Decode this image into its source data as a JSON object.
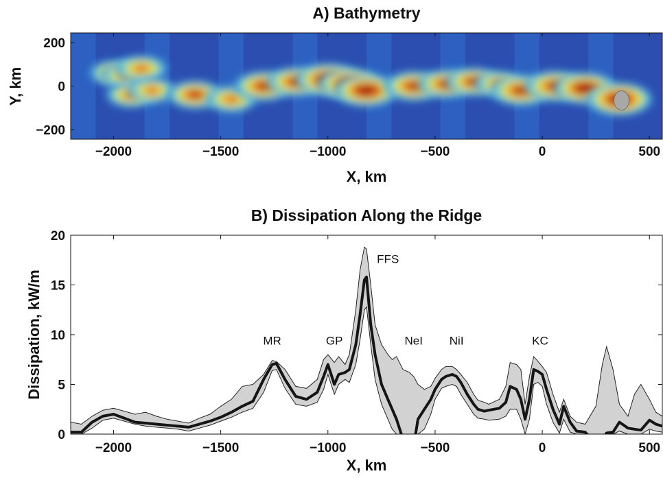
{
  "chart_data": [
    {
      "type": "heatmap",
      "title": "A) Bathymetry",
      "xlabel": "X, km",
      "ylabel": "Y, km",
      "xlim": [
        -2200,
        560
      ],
      "ylim": [
        -245,
        245
      ],
      "xticks": [
        -2000,
        -1500,
        -1000,
        -500,
        0,
        500
      ],
      "yticks": [
        200,
        0,
        -200
      ],
      "colormap": [
        "#2b4fb0",
        "#2f6fd0",
        "#3a9ad8",
        "#66c8e0",
        "#a8e070",
        "#f0e03a",
        "#f09a30",
        "#d04818",
        "#a81e10",
        "#a8a8a8"
      ],
      "shallow_features": [
        {
          "x": -2000,
          "y": 60,
          "intensity": 0.5
        },
        {
          "x": -1940,
          "y": 50,
          "intensity": 0.6
        },
        {
          "x": -1870,
          "y": 80,
          "intensity": 0.6
        },
        {
          "x": -1920,
          "y": -40,
          "intensity": 0.55
        },
        {
          "x": -1820,
          "y": -20,
          "intensity": 0.5
        },
        {
          "x": -1620,
          "y": -40,
          "intensity": 0.7
        },
        {
          "x": -1450,
          "y": -60,
          "intensity": 0.6
        },
        {
          "x": -1300,
          "y": 0,
          "intensity": 0.8
        },
        {
          "x": -1150,
          "y": 20,
          "intensity": 0.75
        },
        {
          "x": -1000,
          "y": 30,
          "intensity": 0.95
        },
        {
          "x": -900,
          "y": 10,
          "intensity": 0.9
        },
        {
          "x": -820,
          "y": -20,
          "intensity": 0.95
        },
        {
          "x": -600,
          "y": 0,
          "intensity": 0.8
        },
        {
          "x": -450,
          "y": 10,
          "intensity": 0.7
        },
        {
          "x": -320,
          "y": 20,
          "intensity": 0.7
        },
        {
          "x": -200,
          "y": 10,
          "intensity": 0.55
        },
        {
          "x": -100,
          "y": -20,
          "intensity": 0.85
        },
        {
          "x": 60,
          "y": 0,
          "intensity": 0.85
        },
        {
          "x": 200,
          "y": -10,
          "intensity": 0.9
        },
        {
          "x": 360,
          "y": -60,
          "intensity": 1.0
        }
      ]
    },
    {
      "type": "area",
      "title": "B) Dissipation Along the Ridge",
      "xlabel": "X, km",
      "ylabel": "Dissipation, kW/m",
      "xlim": [
        -2200,
        560
      ],
      "ylim": [
        0,
        20
      ],
      "xticks": [
        -2000,
        -1500,
        -1000,
        -500,
        0,
        500
      ],
      "yticks": [
        0,
        5,
        10,
        15,
        20
      ],
      "x": [
        -2200,
        -2150,
        -2100,
        -2050,
        -2000,
        -1950,
        -1900,
        -1850,
        -1800,
        -1750,
        -1700,
        -1650,
        -1600,
        -1550,
        -1500,
        -1450,
        -1400,
        -1350,
        -1300,
        -1260,
        -1240,
        -1200,
        -1150,
        -1100,
        -1050,
        -1020,
        -1000,
        -970,
        -950,
        -920,
        -900,
        -870,
        -850,
        -830,
        -820,
        -800,
        -780,
        -750,
        -720,
        -700,
        -680,
        -650,
        -620,
        -600,
        -580,
        -550,
        -520,
        -500,
        -470,
        -450,
        -420,
        -400,
        -380,
        -350,
        -320,
        -300,
        -270,
        -250,
        -200,
        -170,
        -150,
        -120,
        -100,
        -80,
        -60,
        -40,
        -20,
        0,
        20,
        50,
        80,
        100,
        130,
        160,
        200,
        250,
        280,
        300,
        330,
        360,
        400,
        430,
        460,
        500,
        530,
        560
      ],
      "series": [
        {
          "values": [
            0.2,
            0.2,
            1.2,
            1.8,
            2.0,
            1.6,
            1.2,
            1.1,
            1.0,
            0.9,
            0.8,
            0.7,
            1.0,
            1.3,
            1.7,
            2.2,
            2.8,
            3.3,
            5.5,
            7.0,
            7.1,
            5.5,
            3.8,
            3.5,
            4.2,
            5.8,
            7.0,
            5.0,
            6.0,
            6.2,
            6.5,
            9.0,
            12.0,
            15.5,
            15.8,
            11.0,
            8.0,
            5.0,
            3.5,
            2.5,
            1.5,
            -0.5,
            -1.0,
            -1.2,
            1.5,
            2.5,
            3.5,
            4.5,
            5.5,
            5.8,
            6.0,
            5.8,
            5.2,
            4.0,
            3.0,
            2.5,
            2.3,
            2.4,
            2.6,
            3.2,
            4.8,
            4.5,
            3.5,
            1.5,
            3.5,
            6.5,
            6.3,
            6.0,
            4.5,
            2.5,
            1.0,
            2.8,
            1.2,
            0.3,
            0.2,
            -1.0,
            -0.5,
            0.1,
            0.2,
            1.2,
            0.6,
            0.5,
            0.4,
            1.4,
            1.0,
            0.8
          ]
        },
        {
          "values": [
            1.2,
            1.0,
            1.8,
            2.4,
            2.6,
            2.3,
            2.0,
            2.2,
            1.8,
            1.5,
            1.3,
            1.1,
            1.6,
            2.0,
            2.8,
            3.5,
            4.8,
            5.0,
            6.0,
            7.4,
            7.3,
            6.5,
            4.8,
            4.6,
            5.5,
            7.5,
            8.0,
            7.2,
            7.8,
            7.0,
            8.0,
            12.5,
            16.5,
            18.8,
            18.6,
            15.0,
            11.0,
            9.0,
            8.0,
            7.5,
            7.8,
            6.5,
            6.2,
            5.8,
            5.0,
            4.5,
            4.8,
            5.6,
            6.5,
            6.8,
            6.8,
            6.5,
            6.0,
            5.2,
            4.0,
            3.4,
            3.2,
            3.0,
            3.5,
            4.8,
            7.2,
            7.0,
            6.5,
            3.0,
            5.8,
            7.8,
            7.3,
            6.8,
            6.2,
            4.0,
            2.2,
            3.5,
            1.8,
            1.2,
            1.0,
            2.8,
            7.0,
            8.8,
            6.5,
            3.0,
            1.8,
            4.0,
            5.0,
            3.5,
            2.2,
            1.8
          ]
        },
        {
          "values": [
            0.0,
            0.0,
            0.6,
            1.4,
            1.6,
            1.3,
            1.0,
            0.8,
            0.7,
            0.6,
            0.5,
            0.3,
            0.6,
            0.9,
            1.3,
            1.7,
            2.2,
            2.6,
            4.2,
            6.4,
            6.5,
            4.6,
            3.0,
            2.8,
            3.2,
            4.5,
            6.0,
            4.0,
            5.0,
            5.5,
            5.2,
            7.0,
            9.5,
            12.5,
            12.8,
            9.0,
            5.5,
            3.0,
            1.5,
            0.5,
            0.0,
            0.0,
            0.0,
            0.0,
            0.0,
            0.5,
            2.0,
            3.5,
            4.6,
            4.8,
            5.0,
            4.8,
            4.0,
            3.0,
            2.0,
            1.6,
            1.5,
            1.4,
            1.5,
            1.8,
            2.5,
            2.5,
            1.5,
            0.0,
            1.5,
            5.0,
            5.2,
            4.8,
            3.0,
            1.2,
            0.1,
            1.5,
            0.2,
            0.0,
            0.0,
            0.0,
            0.0,
            0.0,
            0.0,
            0.3,
            0.0,
            0.0,
            0.0,
            0.5,
            0.3,
            0.2
          ]
        }
      ],
      "annotations": [
        {
          "text": "FFS",
          "x": -720,
          "y": 17.2
        },
        {
          "text": "MR",
          "x": -1260,
          "y": 9.0
        },
        {
          "text": "GP",
          "x": -970,
          "y": 9.0
        },
        {
          "text": "NeI",
          "x": -600,
          "y": 9.0
        },
        {
          "text": "NiI",
          "x": -400,
          "y": 9.0
        },
        {
          "text": "KC",
          "x": -10,
          "y": 9.0
        }
      ]
    }
  ]
}
